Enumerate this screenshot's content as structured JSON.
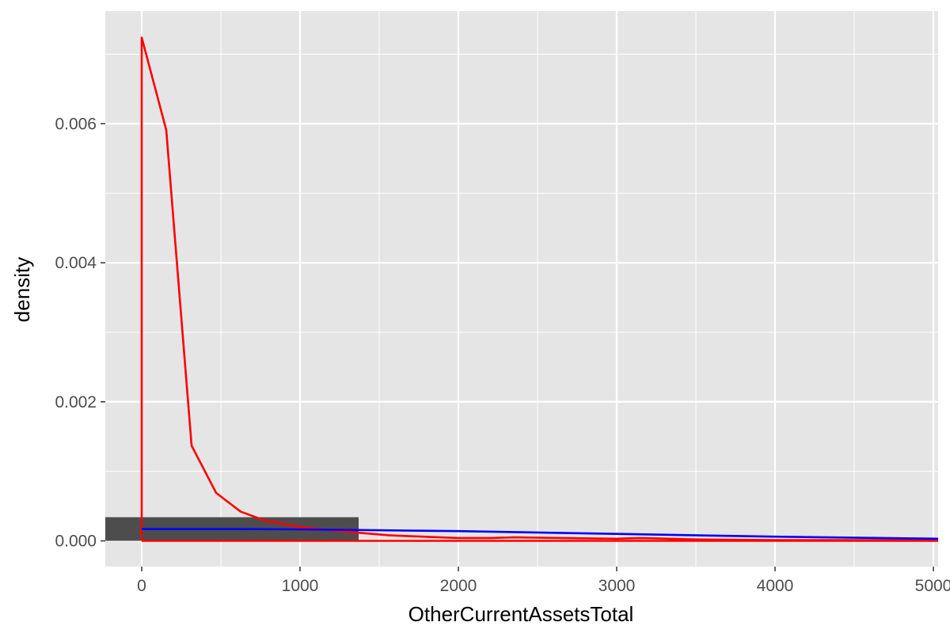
{
  "chart_data": {
    "type": "histogram",
    "xlabel": "OtherCurrentAssetsTotal",
    "ylabel": "density",
    "xlim": [
      -230,
      5030
    ],
    "ylim": [
      -0.00037,
      0.00762
    ],
    "x_ticks": [
      0,
      1000,
      2000,
      3000,
      4000,
      5000
    ],
    "x_tick_labels": [
      "0",
      "1000",
      "2000",
      "3000",
      "4000",
      "5000"
    ],
    "y_ticks": [
      0,
      0.002,
      0.004,
      0.006
    ],
    "y_tick_labels": [
      "0.000",
      "0.002",
      "0.004",
      "0.006"
    ],
    "grid": true,
    "colors": {
      "panel": "#e5e5e5",
      "grid": "#ffffff",
      "bar": "#4d4d4d",
      "red_series": "#ff0000",
      "blue_series": "#0000ff",
      "text": "#4d4d4d",
      "title": "#000000"
    },
    "bars": [
      {
        "x0": -230,
        "x1": 1370,
        "density": 0.00034
      }
    ],
    "series": [
      {
        "color": "#ff0000",
        "points": [
          [
            0,
            0.0
          ],
          [
            0,
            0.00724
          ],
          [
            155,
            0.00591
          ],
          [
            315,
            0.00137
          ],
          [
            470,
            0.00069
          ],
          [
            625,
            0.00042
          ],
          [
            780,
            0.00029
          ],
          [
            1000,
            0.0002
          ],
          [
            1250,
            0.00014
          ],
          [
            1560,
            8e-05
          ],
          [
            2000,
            4e-05
          ],
          [
            2200,
            4e-05
          ],
          [
            2350,
            5e-05
          ],
          [
            3000,
            3e-05
          ],
          [
            3150,
            4e-05
          ],
          [
            3500,
            2e-05
          ],
          [
            4000,
            1e-05
          ],
          [
            5030,
            1e-05
          ],
          [
            5030,
            0.0
          ],
          [
            0,
            0.0
          ]
        ]
      },
      {
        "color": "#0000ff",
        "points": [
          [
            0,
            0.00017
          ],
          [
            600,
            0.00017
          ],
          [
            1000,
            0.000165
          ],
          [
            2000,
            0.00014
          ],
          [
            3000,
            0.0001
          ],
          [
            4000,
            6e-05
          ],
          [
            5030,
            3e-05
          ]
        ]
      }
    ]
  }
}
